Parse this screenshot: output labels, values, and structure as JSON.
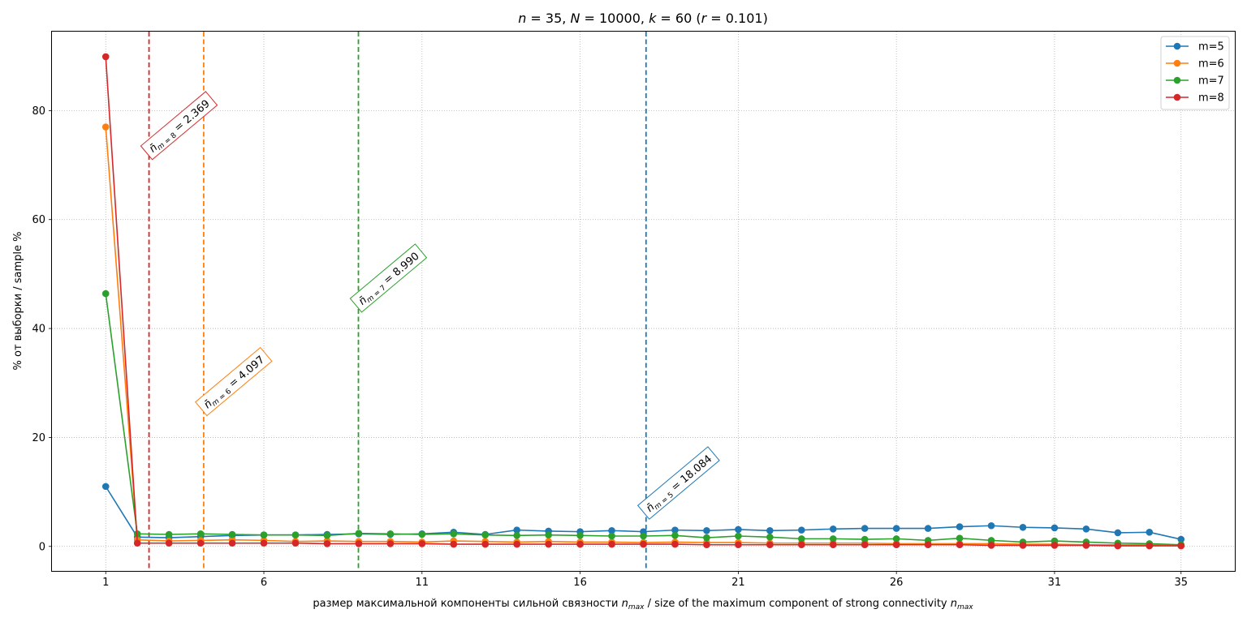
{
  "chart_data": {
    "type": "line",
    "title": "n = 35, N = 10000, k = 60 (r = 0.101)",
    "title_parts": {
      "n": "35",
      "N": "10000",
      "k": "60",
      "r": "0.101"
    },
    "xlabel_pre": "размер максимальной компоненты сильной связности ",
    "xlabel_mid": " / size of the maximum component of strong connectivity ",
    "xlabel_var": "n",
    "xlabel_sub": "max",
    "ylabel": "% от выборки / sample %",
    "xlim": [
      -0.7,
      36.7
    ],
    "ylim": [
      -4.5,
      94.5
    ],
    "xticks": [
      1,
      6,
      11,
      16,
      21,
      26,
      31,
      35
    ],
    "yticks": [
      0,
      20,
      40,
      60,
      80
    ],
    "grid": true,
    "legend_position": "top-right",
    "x": [
      1,
      2,
      3,
      4,
      5,
      6,
      7,
      8,
      9,
      10,
      11,
      12,
      13,
      14,
      15,
      16,
      17,
      18,
      19,
      20,
      21,
      22,
      23,
      24,
      25,
      26,
      27,
      28,
      29,
      30,
      31,
      32,
      33,
      34,
      35
    ],
    "series": [
      {
        "name": "m=5",
        "color": "#1f77b4",
        "values": [
          11.0,
          1.7,
          1.6,
          1.8,
          2.0,
          2.1,
          2.1,
          2.2,
          2.3,
          2.2,
          2.3,
          2.6,
          2.2,
          3.0,
          2.8,
          2.7,
          2.9,
          2.7,
          3.0,
          2.9,
          3.1,
          2.9,
          3.0,
          3.2,
          3.3,
          3.3,
          3.3,
          3.6,
          3.8,
          3.5,
          3.4,
          3.2,
          2.5,
          2.6,
          1.3
        ]
      },
      {
        "name": "m=6",
        "color": "#ff7f0e",
        "values": [
          77.0,
          1.2,
          1.0,
          1.1,
          1.2,
          1.1,
          0.9,
          1.0,
          0.9,
          0.9,
          0.8,
          1.0,
          0.9,
          0.8,
          0.9,
          0.8,
          0.8,
          0.7,
          0.8,
          0.7,
          0.7,
          0.6,
          0.6,
          0.6,
          0.6,
          0.5,
          0.5,
          0.5,
          0.5,
          0.4,
          0.4,
          0.3,
          0.3,
          0.3,
          0.2
        ]
      },
      {
        "name": "m=7",
        "color": "#2ca02c",
        "values": [
          46.4,
          2.3,
          2.2,
          2.3,
          2.2,
          2.1,
          2.1,
          2.0,
          2.4,
          2.3,
          2.2,
          2.3,
          2.1,
          2.0,
          2.1,
          2.0,
          1.9,
          1.9,
          2.0,
          1.6,
          1.9,
          1.7,
          1.4,
          1.4,
          1.3,
          1.4,
          1.1,
          1.5,
          1.1,
          0.8,
          1.0,
          0.8,
          0.6,
          0.5,
          0.3
        ]
      },
      {
        "name": "m=8",
        "color": "#d62728",
        "values": [
          89.9,
          0.6,
          0.6,
          0.6,
          0.6,
          0.6,
          0.6,
          0.5,
          0.5,
          0.5,
          0.5,
          0.4,
          0.4,
          0.4,
          0.4,
          0.4,
          0.4,
          0.4,
          0.4,
          0.3,
          0.3,
          0.3,
          0.3,
          0.3,
          0.3,
          0.3,
          0.3,
          0.3,
          0.2,
          0.2,
          0.2,
          0.2,
          0.1,
          0.1,
          0.1
        ]
      }
    ],
    "vlines": [
      {
        "series": "m=8",
        "m": "8",
        "x": 2.369,
        "value": "2.369",
        "color": "#d62728",
        "label_y": 71
      },
      {
        "series": "m=6",
        "m": "6",
        "x": 4.097,
        "value": "4.097",
        "color": "#ff7f0e",
        "label_y": 24
      },
      {
        "series": "m=7",
        "m": "7",
        "x": 8.99,
        "value": "8.990",
        "color": "#2ca02c",
        "label_y": 43
      },
      {
        "series": "m=5",
        "m": "5",
        "x": 18.084,
        "value": "18.084",
        "color": "#1f77b4",
        "label_y": 5
      }
    ]
  }
}
